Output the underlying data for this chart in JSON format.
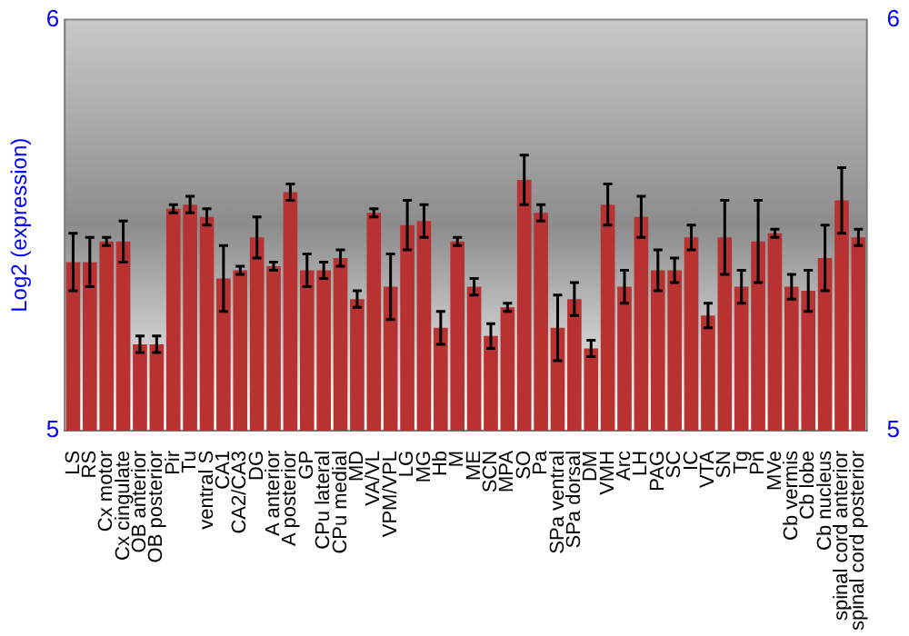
{
  "chart_data": {
    "type": "bar",
    "ylabel": "Log2 (expression)",
    "categories": [
      "LS",
      "RS",
      "Cx motor",
      "Cx cingulate",
      "OB anterior",
      "OB posterior",
      "Pir",
      "Tu",
      "ventral S",
      "CA1",
      "CA2/CA3",
      "DG",
      "A anterior",
      "A posterior",
      "GP",
      "CPu lateral",
      "CPu medial",
      "MD",
      "VA/VL",
      "VPM/VPL",
      "LG",
      "MG",
      "Hb",
      "M",
      "ME",
      "SCN",
      "MPA",
      "SO",
      "Pa",
      "SPa ventral",
      "SPa dorsal",
      "DM",
      "VMH",
      "Arc",
      "LH",
      "PAG",
      "SC",
      "IC",
      "VTA",
      "SN",
      "Tg",
      "Pn",
      "MVe",
      "Cb vermis",
      "Cb lobe",
      "Cb nucleus",
      "spinal cord anterior",
      "spinal cord posterior"
    ],
    "values": [
      5.41,
      5.41,
      5.46,
      5.46,
      5.21,
      5.21,
      5.54,
      5.55,
      5.52,
      5.37,
      5.39,
      5.47,
      5.4,
      5.58,
      5.39,
      5.39,
      5.42,
      5.32,
      5.53,
      5.35,
      5.5,
      5.51,
      5.25,
      5.46,
      5.35,
      5.23,
      5.3,
      5.61,
      5.53,
      5.25,
      5.32,
      5.2,
      5.55,
      5.35,
      5.52,
      5.39,
      5.39,
      5.47,
      5.28,
      5.47,
      5.35,
      5.46,
      5.48,
      5.35,
      5.34,
      5.42,
      5.56,
      5.47
    ],
    "errors": [
      0.07,
      0.06,
      0.01,
      0.05,
      0.02,
      0.02,
      0.01,
      0.02,
      0.02,
      0.08,
      0.01,
      0.05,
      0.01,
      0.02,
      0.04,
      0.02,
      0.02,
      0.02,
      0.01,
      0.08,
      0.06,
      0.04,
      0.04,
      0.01,
      0.02,
      0.03,
      0.01,
      0.06,
      0.02,
      0.08,
      0.04,
      0.02,
      0.05,
      0.04,
      0.05,
      0.05,
      0.03,
      0.03,
      0.03,
      0.09,
      0.04,
      0.1,
      0.01,
      0.03,
      0.05,
      0.08,
      0.08,
      0.02
    ],
    "color": "#b83232",
    "ylim": [
      5,
      6
    ],
    "yticks": [
      5,
      6
    ],
    "y2lim": [
      5,
      6
    ],
    "y2ticks": [
      5,
      6
    ],
    "grid": false,
    "legend": false
  }
}
